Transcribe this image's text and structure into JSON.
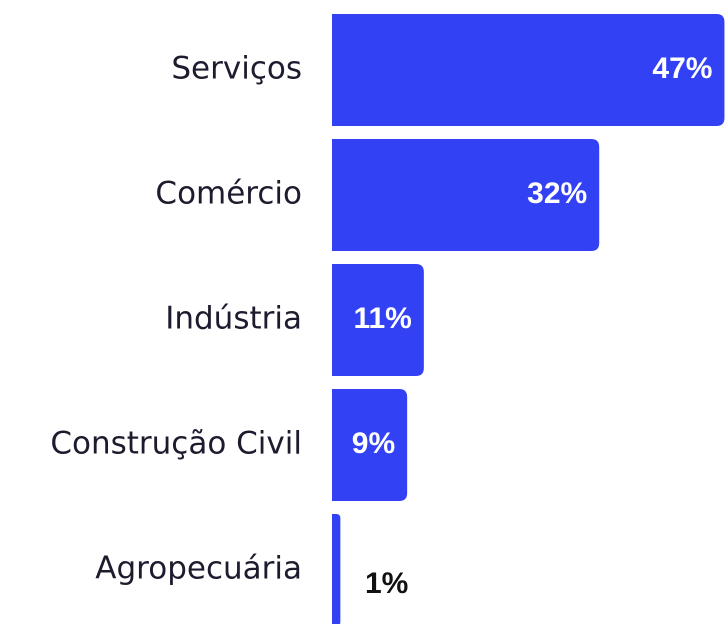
{
  "chart_data": {
    "type": "bar",
    "orientation": "horizontal",
    "categories": [
      "Serviços",
      "Comércio",
      "Indústria",
      "Construção Civil",
      "Agropecuária"
    ],
    "values": [
      47,
      32,
      11,
      9,
      1
    ],
    "value_labels": [
      "47%",
      "32%",
      "11%",
      "9%",
      "1%"
    ],
    "color": "#3341f5"
  }
}
